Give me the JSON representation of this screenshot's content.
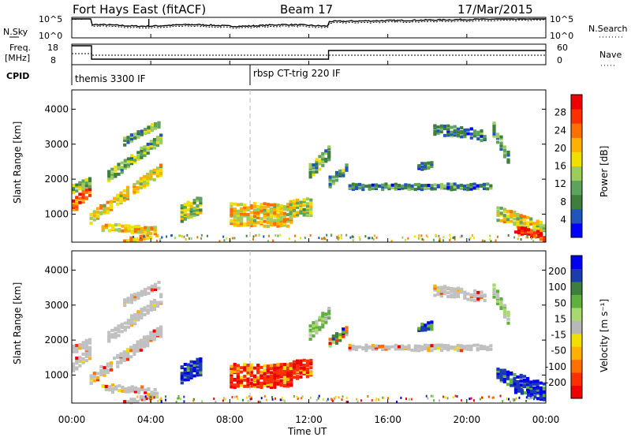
{
  "header": {
    "station": "Fort Hays East (fitACF)",
    "beam": "Beam 17",
    "date": "17/Mar/2015"
  },
  "top_panels": {
    "nsky_label": "N.Sky",
    "nsky_ticks": [
      "10^5",
      "10^0"
    ],
    "nsearch_label": "N.Search",
    "nsearch_ticks": [
      "10^5",
      "10^0"
    ],
    "freq_label_line1": "Freq.",
    "freq_label_line2": "[MHz]",
    "freq_ticks": [
      "18",
      "8"
    ],
    "nave_label": "Nave",
    "nave_ticks": [
      "60",
      "0"
    ],
    "cpid_label": "CPID",
    "cpid_segments": [
      {
        "label": "themis 3300 IF",
        "start_hour": 0
      },
      {
        "label": "rbsp CT-trig 220 IF",
        "start_hour": 9
      }
    ]
  },
  "colors": {
    "frame": "#000000",
    "dashed": "#b8b8b8",
    "groundscatter": "#c0c0c0"
  },
  "chart_data": [
    {
      "type": "heatmap",
      "name": "power",
      "ylabel": "Slant Range [km]",
      "yticks": [
        "4000",
        "3000",
        "2000",
        "1000"
      ],
      "ylim": [
        200,
        4550
      ],
      "xlim": [
        0,
        24
      ],
      "colorbar_label": "Power [dB]",
      "colorbar_ticks": [
        "28",
        "24",
        "20",
        "16",
        "12",
        "8",
        "4"
      ],
      "colorbar_colors": [
        "#0000ff",
        "#2255bb",
        "#3e7f3e",
        "#5da25d",
        "#9ccc5a",
        "#f0e000",
        "#ffb000",
        "#ff7000",
        "#ff3000",
        "#ee0000"
      ]
    },
    {
      "type": "heatmap",
      "name": "velocity",
      "ylabel": "Slant Range [km]",
      "yticks": [
        "4000",
        "3000",
        "2000",
        "1000"
      ],
      "ylim": [
        200,
        4550
      ],
      "xlim": [
        0,
        24
      ],
      "xticks": [
        "00:00",
        "04:00",
        "08:00",
        "12:00",
        "16:00",
        "20:00",
        "00:00"
      ],
      "xlabel": "Time UT",
      "colorbar_label": "Velocity [m s⁻¹]",
      "colorbar_ticks": [
        "200",
        "100",
        "50",
        "15",
        "-15",
        "-50",
        "-100",
        "-200"
      ],
      "colorbar_colors": [
        "#ee0000",
        "#ff3000",
        "#ff7000",
        "#ffb000",
        "#f0e000",
        "#b8b8b8",
        "#a8d870",
        "#60b040",
        "#3e7f3e",
        "#1c3bb0",
        "#0000ee"
      ]
    }
  ]
}
